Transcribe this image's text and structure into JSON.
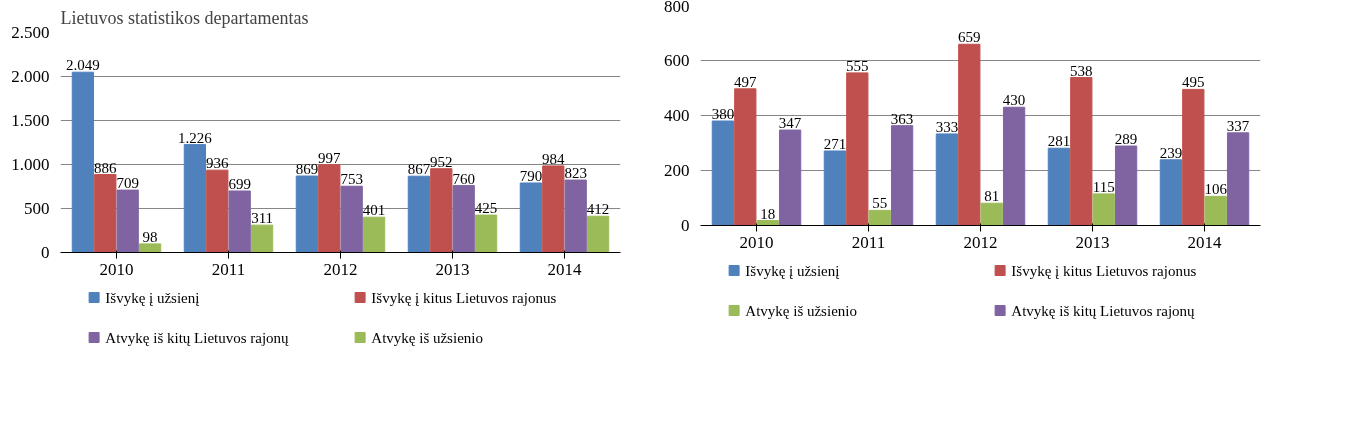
{
  "chart_data": [
    {
      "type": "bar",
      "annotations": [
        "Lietuvos statistikos departamentas"
      ],
      "categories": [
        "2010",
        "2011",
        "2012",
        "2013",
        "2014"
      ],
      "series": [
        {
          "name": "Išvykę į užsienį",
          "color": "#4f81bd",
          "values": [
            2049,
            1226,
            869,
            867,
            790
          ],
          "value_labels": [
            "2.049",
            "1.226",
            "869",
            "867",
            "790"
          ]
        },
        {
          "name": "Išvykę į kitus Lietuvos rajonus",
          "color": "#c0504d",
          "values": [
            886,
            936,
            997,
            952,
            984
          ],
          "value_labels": [
            "886",
            "936",
            "997",
            "952",
            "984"
          ]
        },
        {
          "name": "Atvykę iš kitų Lietuvos rajonų",
          "color": "#8064a2",
          "values": [
            709,
            699,
            753,
            760,
            823
          ],
          "value_labels": [
            "709",
            "699",
            "753",
            "760",
            "823"
          ]
        },
        {
          "name": "Atvykę iš užsienio",
          "color": "#9bbb59",
          "values": [
            98,
            311,
            401,
            425,
            412
          ],
          "value_labels": [
            "98",
            "311",
            "401",
            "425",
            "412"
          ]
        }
      ],
      "ylim": [
        0,
        2500
      ],
      "yticks": [
        0,
        500,
        {
          "value": 1000,
          "label": "1.000"
        },
        {
          "value": 1500,
          "label": "1.500"
        },
        {
          "value": 2000,
          "label": "2.000"
        },
        {
          "value": 2500,
          "label": "2.500"
        }
      ],
      "grid": "y",
      "legend": "bottom"
    },
    {
      "type": "bar",
      "categories": [
        "2010",
        "2011",
        "2012",
        "2013",
        "2014"
      ],
      "series": [
        {
          "name": "Išvykę į užsienį",
          "color": "#4f81bd",
          "values": [
            380,
            271,
            333,
            281,
            239
          ]
        },
        {
          "name": "Išvykę į kitus Lietuvos rajonus",
          "color": "#c0504d",
          "values": [
            497,
            555,
            659,
            538,
            495
          ]
        },
        {
          "name": "Atvykę iš užsienio",
          "color": "#9bbb59",
          "values": [
            18,
            55,
            81,
            115,
            106
          ]
        },
        {
          "name": "Atvykę iš kitų Lietuvos rajonų",
          "color": "#8064a2",
          "values": [
            347,
            363,
            430,
            289,
            337
          ]
        }
      ],
      "ylim": [
        0,
        800
      ],
      "yticks": [
        0,
        200,
        400,
        600,
        800
      ],
      "data_labels": true,
      "grid": "y",
      "legend": "bottom"
    }
  ]
}
